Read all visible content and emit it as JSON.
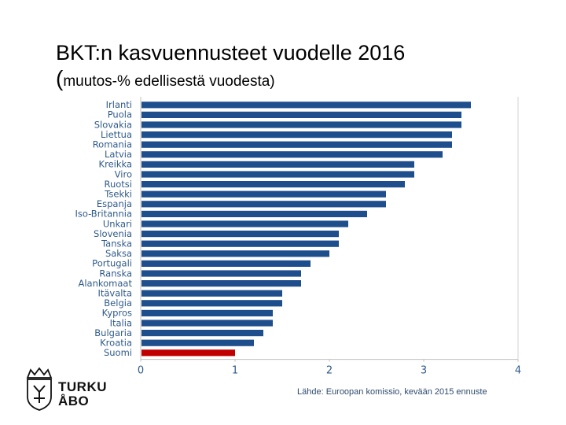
{
  "header": {
    "title": "BKT:n kasvuennusteet vuodelle 2016",
    "subtitle_paren": "(",
    "subtitle_text": "muutos-% edellisestä vuodesta)"
  },
  "logo": {
    "line1": "TURKU",
    "line2": "ÅBO"
  },
  "source_note": "Lähde: Euroopan komissio, kevään 2015 ennuste",
  "colors": {
    "bar": "#1f4e8c",
    "highlight": "#c00000",
    "label": "#2f5a8a",
    "axis": "#7f7f7f"
  },
  "chart_data": {
    "type": "bar",
    "orientation": "horizontal",
    "title": "BKT:n kasvuennusteet vuodelle 2016",
    "subtitle": "(muutos-% edellisestä vuodesta)",
    "categories": [
      "Irlanti",
      "Puola",
      "Slovakia",
      "Liettua",
      "Romania",
      "Latvia",
      "Kreikka",
      "Viro",
      "Ruotsi",
      "Tsekki",
      "Espanja",
      "Iso-Britannia",
      "Unkari",
      "Slovenia",
      "Tanska",
      "Saksa",
      "Portugali",
      "Ranska",
      "Alankomaat",
      "Itävalta",
      "Belgia",
      "Kypros",
      "Italia",
      "Bulgaria",
      "Kroatia",
      "Suomi"
    ],
    "values": [
      3.5,
      3.4,
      3.4,
      3.3,
      3.3,
      3.2,
      2.9,
      2.9,
      2.8,
      2.6,
      2.6,
      2.4,
      2.2,
      2.1,
      2.1,
      2.0,
      1.8,
      1.7,
      1.7,
      1.5,
      1.5,
      1.4,
      1.4,
      1.3,
      1.2,
      1.0
    ],
    "highlight": "Suomi",
    "xlim": [
      0,
      4
    ],
    "xticks": [
      "0",
      "1",
      "2",
      "3",
      "4"
    ],
    "grid": false,
    "xlabel": "",
    "ylabel": ""
  }
}
